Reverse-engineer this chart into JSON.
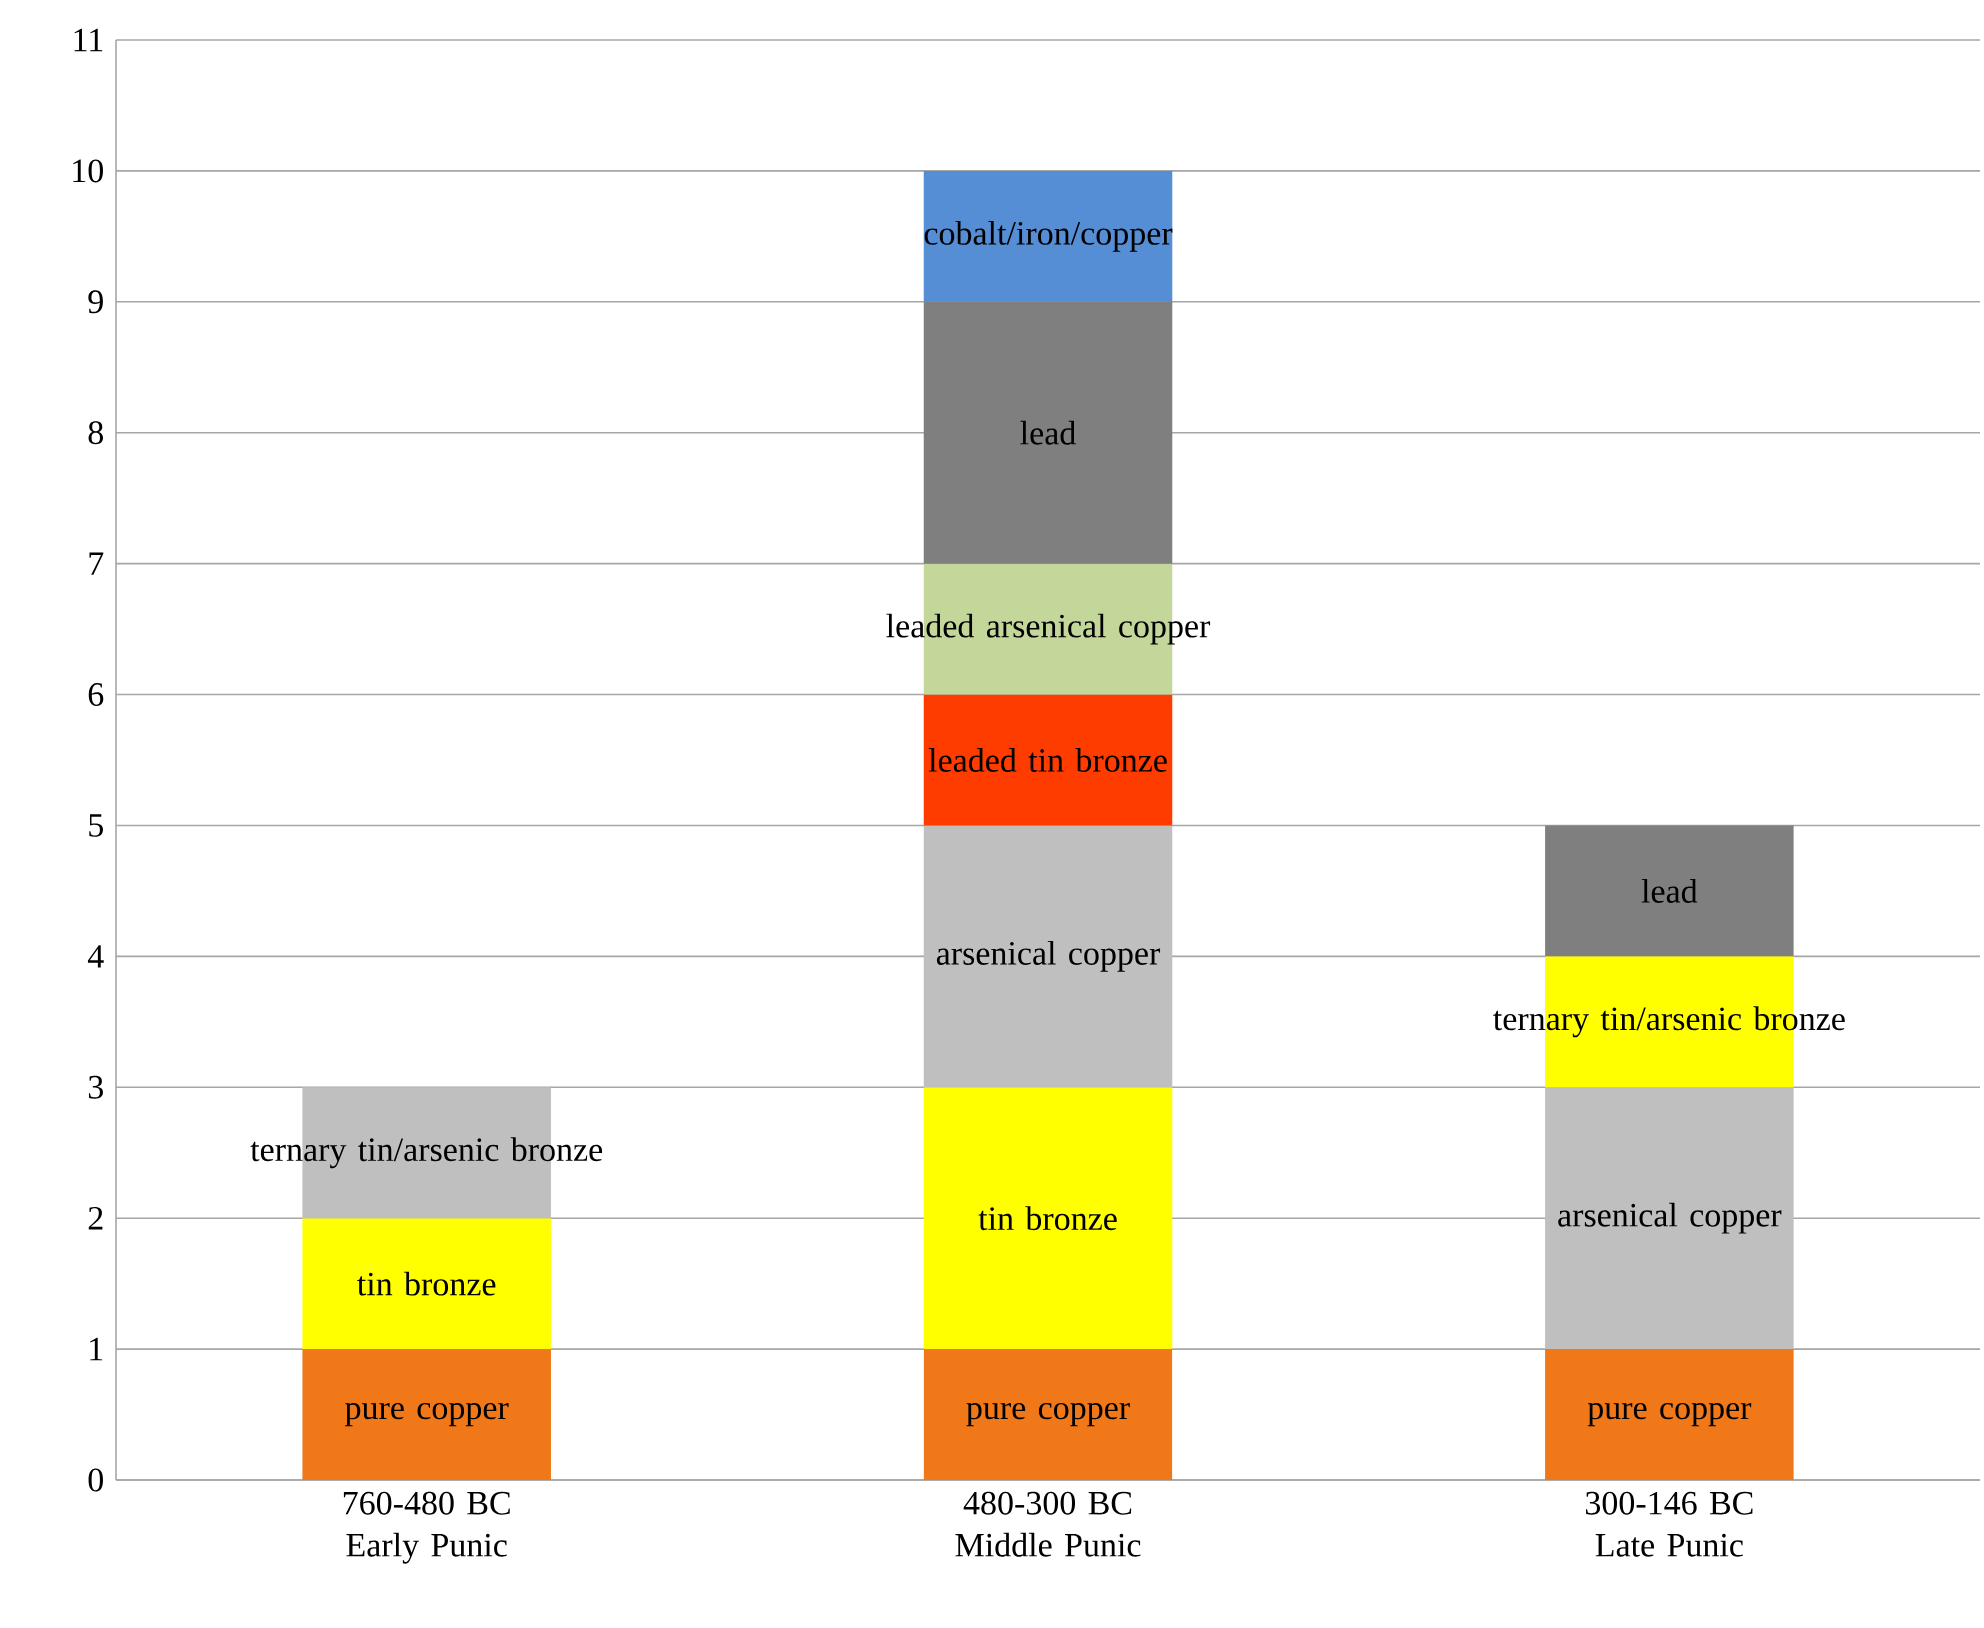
{
  "chart_data": {
    "type": "bar",
    "stacked": true,
    "grid": "y",
    "categories": [
      "760-480 BC Early Punic",
      "480-300 BC Middle Punic",
      "300-146 BC Late Punic"
    ],
    "ylim": [
      0,
      11
    ],
    "yticks": [
      0,
      1,
      2,
      3,
      4,
      5,
      6,
      7,
      8,
      9,
      10,
      11
    ],
    "series": [
      {
        "name": "pure copper",
        "color": "#f07818",
        "values": [
          1,
          1,
          1
        ]
      },
      {
        "name": "tin bronze",
        "color": "#ffff00",
        "values": [
          1,
          2,
          null
        ]
      },
      {
        "name": "arsenical copper",
        "color": "#bfbfbf",
        "values": [
          null,
          2,
          2
        ]
      },
      {
        "name": "ternary tin/arsenic bronze",
        "colors": [
          "#bfbfbf",
          null,
          "#ffff00"
        ],
        "values": [
          1,
          null,
          1
        ]
      },
      {
        "name": "leaded tin bronze",
        "color": "#ff3c00",
        "values": [
          null,
          1,
          null
        ]
      },
      {
        "name": "leaded arsenical copper",
        "color": "#c4d79b",
        "values": [
          null,
          1,
          null
        ]
      },
      {
        "name": "lead",
        "color": "#7f7f7f",
        "values": [
          null,
          2,
          1
        ]
      },
      {
        "name": "cobalt/iron/copper",
        "color": "#558ed5",
        "values": [
          null,
          1,
          null
        ]
      }
    ]
  }
}
